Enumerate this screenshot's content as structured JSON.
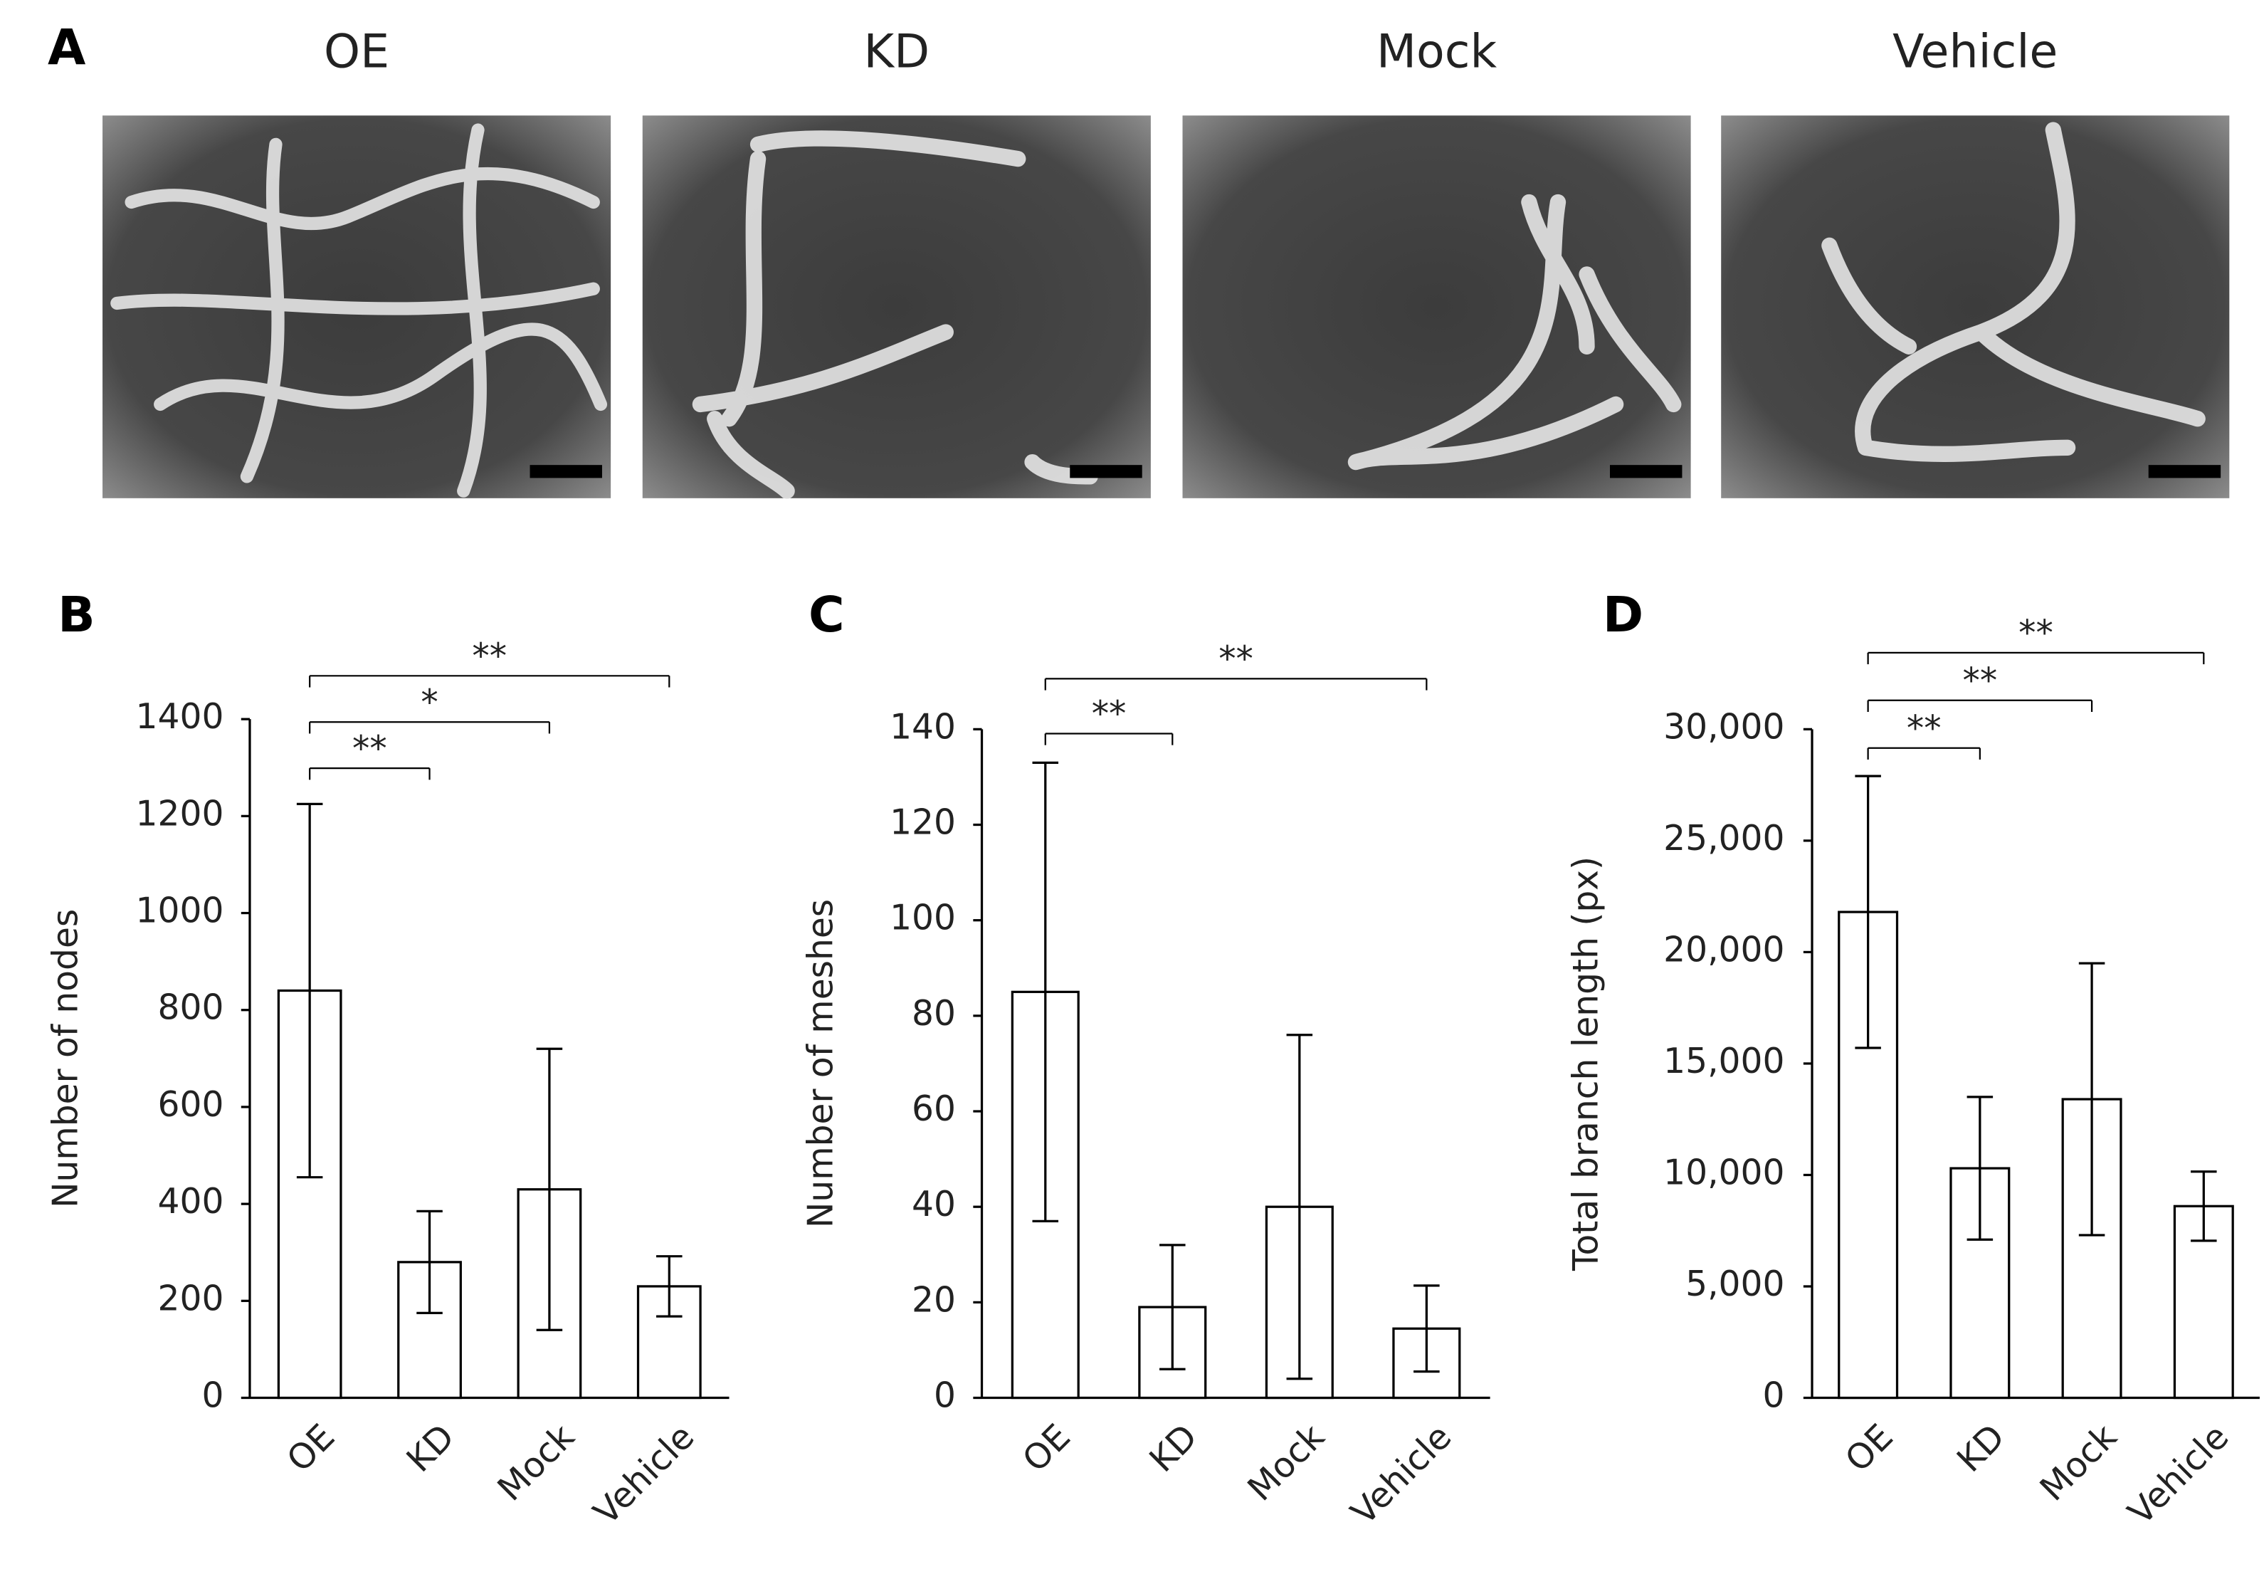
{
  "panel_a": {
    "label": "A",
    "images": [
      {
        "label": "OE"
      },
      {
        "label": "KD"
      },
      {
        "label": "Mock"
      },
      {
        "label": "Vehicle"
      }
    ]
  },
  "chart_data": [
    {
      "type": "bar",
      "panel": "B",
      "y_label": "Number of nodes",
      "categories": [
        "OE",
        "KD",
        "Mock",
        "Vehicle"
      ],
      "values": [
        840,
        280,
        430,
        230
      ],
      "errors": [
        385,
        105,
        290,
        62
      ],
      "ylim": [
        0,
        1400
      ],
      "yticks": [
        0,
        200,
        400,
        600,
        800,
        1000,
        1200,
        1400
      ],
      "significance": [
        {
          "label": "**",
          "from": "OE",
          "to": "KD"
        },
        {
          "label": "*",
          "from": "OE",
          "to": "Mock"
        },
        {
          "label": "**",
          "from": "OE",
          "to": "Vehicle"
        }
      ]
    },
    {
      "type": "bar",
      "panel": "C",
      "y_label": "Number of meshes",
      "categories": [
        "OE",
        "KD",
        "Mock",
        "Vehicle"
      ],
      "values": [
        85,
        19,
        40,
        14.5
      ],
      "errors": [
        48,
        13,
        36,
        9
      ],
      "ylim": [
        0,
        140
      ],
      "yticks": [
        0,
        20,
        40,
        60,
        80,
        100,
        120,
        140
      ],
      "significance": [
        {
          "label": "**",
          "from": "OE",
          "to": "KD"
        },
        {
          "label": "**",
          "from": "OE",
          "to": "Vehicle"
        }
      ]
    },
    {
      "type": "bar",
      "panel": "D",
      "y_label": "Total branch length (px)",
      "categories": [
        "OE",
        "KD",
        "Mock",
        "Vehicle"
      ],
      "values": [
        21800,
        10300,
        13400,
        8600
      ],
      "errors": [
        6100,
        3200,
        6100,
        1550
      ],
      "ylim": [
        0,
        30000
      ],
      "yticks": [
        0,
        {
          "value": 5000,
          "label": "5,000"
        },
        {
          "value": 10000,
          "label": "10,000"
        },
        {
          "value": 15000,
          "label": "15,000"
        },
        {
          "value": 20000,
          "label": "20,000"
        },
        {
          "value": 25000,
          "label": "25,000"
        },
        {
          "value": 30000,
          "label": "30,000"
        }
      ],
      "significance": [
        {
          "label": "**",
          "from": "OE",
          "to": "KD"
        },
        {
          "label": "**",
          "from": "OE",
          "to": "Mock"
        },
        {
          "label": "**",
          "from": "OE",
          "to": "Vehicle"
        }
      ]
    }
  ]
}
